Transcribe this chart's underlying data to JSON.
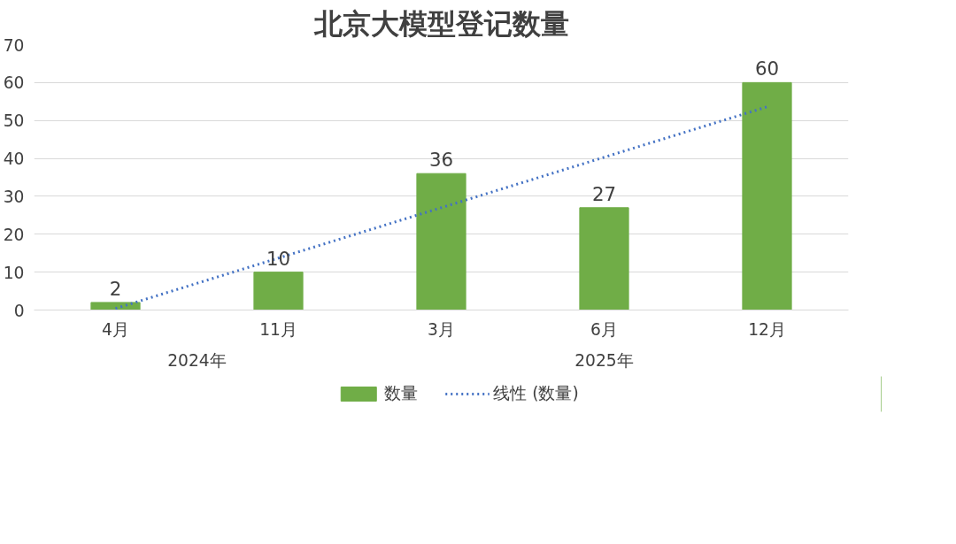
{
  "chart_data": {
    "type": "bar",
    "title": "北京大模型登记数量",
    "categories": [
      "4月",
      "11月",
      "3月",
      "6月",
      "12月"
    ],
    "series": [
      {
        "name": "数量",
        "color": "#70ad47",
        "values": [
          2,
          10,
          36,
          27,
          60
        ],
        "value_labels": [
          "2",
          "10",
          "36",
          "27",
          "60"
        ]
      },
      {
        "name": "线性 (数量)",
        "type": "line",
        "color": "#4472c4",
        "line_style": "dotted",
        "values": [
          0.4,
          13.7,
          27,
          40.3,
          53.6
        ]
      }
    ],
    "annotations": [
      "2024年",
      "2025年"
    ],
    "ylim": [
      0,
      70
    ],
    "yticks": [
      0,
      10,
      20,
      30,
      40,
      50,
      60,
      70
    ],
    "grid": "y",
    "legend": "bottom"
  }
}
